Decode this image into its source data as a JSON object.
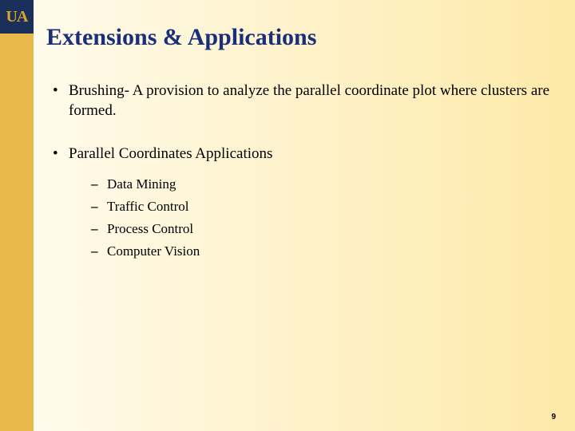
{
  "logo": {
    "text": "UA",
    "bg_color": "#1a2f5a",
    "text_color": "#d9a52c"
  },
  "sidebar": {
    "color": "#e8b94a"
  },
  "background": {
    "gradient_from": "#fffcf0",
    "gradient_to": "#fde9a8"
  },
  "title": {
    "text": "Extensions & Applications",
    "color": "#1a2f7a",
    "fontsize": 30
  },
  "bullets": [
    {
      "text": "Brushing- A provision to analyze the parallel coordinate plot where clusters are formed.",
      "sub": []
    },
    {
      "text": "Parallel Coordinates Applications",
      "sub": [
        "Data Mining",
        "Traffic Control",
        "Process Control",
        "Computer Vision"
      ]
    }
  ],
  "page_number": "9"
}
